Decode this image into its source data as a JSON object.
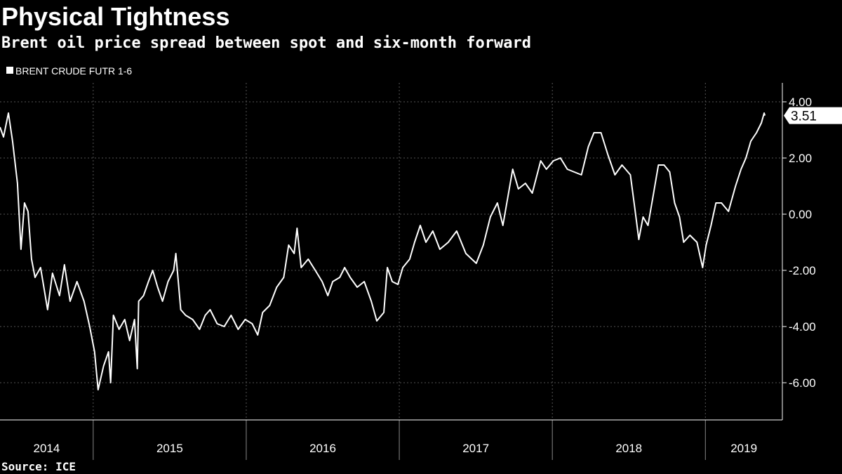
{
  "chart_data": {
    "type": "line",
    "title": "Physical Tightness",
    "subtitle": "Brent oil price spread between spot and six-month forward",
    "source": "Source: ICE",
    "x": [
      2014.391,
      2014.414,
      2014.446,
      2014.473,
      2014.505,
      2014.528,
      2014.551,
      2014.574,
      2014.597,
      2014.62,
      2014.656,
      2014.702,
      2014.734,
      2014.78,
      2014.812,
      2014.849,
      2014.894,
      2014.94,
      2014.977,
      2015.009,
      2015.032,
      2015.068,
      2015.1,
      2015.114,
      2015.132,
      2015.169,
      2015.206,
      2015.238,
      2015.27,
      2015.288,
      2015.297,
      2015.329,
      2015.361,
      2015.389,
      2015.421,
      2015.453,
      2015.489,
      2015.526,
      2015.54,
      2015.572,
      2015.604,
      2015.65,
      2015.695,
      2015.732,
      2015.764,
      2015.81,
      2015.856,
      2015.901,
      2015.947,
      2015.993,
      2016.039,
      2016.075,
      2016.107,
      2016.153,
      2016.199,
      2016.245,
      2016.277,
      2016.313,
      2016.332,
      2016.359,
      2016.405,
      2016.451,
      2016.496,
      2016.533,
      2016.565,
      2016.611,
      2016.643,
      2016.679,
      2016.725,
      2016.771,
      2016.817,
      2016.853,
      2016.899,
      2016.922,
      2016.954,
      2016.991,
      2017.023,
      2017.068,
      2017.1,
      2017.137,
      2017.174,
      2017.219,
      2017.265,
      2017.32,
      2017.375,
      2017.435,
      2017.503,
      2017.549,
      2017.595,
      2017.641,
      2017.677,
      2017.709,
      2017.741,
      2017.778,
      2017.824,
      2017.869,
      2017.924,
      2017.961,
      2018.007,
      2018.053,
      2018.098,
      2018.144,
      2018.19,
      2018.235,
      2018.272,
      2018.318,
      2018.364,
      2018.409,
      2018.455,
      2018.51,
      2018.538,
      2018.565,
      2018.593,
      2018.625,
      2018.657,
      2018.693,
      2018.73,
      2018.767,
      2018.799,
      2018.831,
      2018.858,
      2018.899,
      2018.945,
      2018.982,
      2019.005,
      2019.037,
      2019.069,
      2019.105,
      2019.151,
      2019.197,
      2019.233,
      2019.265,
      2019.297,
      2019.334,
      2019.366,
      2019.384,
      2019.389
    ],
    "series": [
      {
        "name": "BRENT CRUDE FUTR 1-6",
        "color": "#ffffff",
        "values": [
          3.1,
          2.75,
          3.6,
          2.6,
          1.1,
          -1.25,
          0.4,
          0.1,
          -1.6,
          -2.25,
          -1.9,
          -3.4,
          -2.1,
          -2.9,
          -1.8,
          -3.1,
          -2.4,
          -3.1,
          -4.0,
          -4.9,
          -6.25,
          -5.4,
          -4.9,
          -6.0,
          -3.6,
          -4.1,
          -3.75,
          -4.5,
          -3.75,
          -5.5,
          -3.1,
          -2.9,
          -2.4,
          -2.0,
          -2.6,
          -3.1,
          -2.4,
          -2.0,
          -1.4,
          -3.4,
          -3.6,
          -3.75,
          -4.1,
          -3.6,
          -3.4,
          -3.9,
          -4.0,
          -3.6,
          -4.1,
          -3.75,
          -3.9,
          -4.3,
          -3.5,
          -3.25,
          -2.6,
          -2.25,
          -1.1,
          -1.4,
          -0.5,
          -1.9,
          -1.6,
          -2.0,
          -2.4,
          -2.9,
          -2.4,
          -2.25,
          -1.9,
          -2.25,
          -2.6,
          -2.4,
          -3.1,
          -3.8,
          -3.5,
          -1.9,
          -2.4,
          -2.5,
          -1.9,
          -1.6,
          -1.0,
          -0.4,
          -1.0,
          -0.6,
          -1.25,
          -1.0,
          -0.6,
          -1.4,
          -1.75,
          -1.1,
          -0.1,
          0.4,
          -0.4,
          0.6,
          1.6,
          0.9,
          1.1,
          0.75,
          1.9,
          1.6,
          1.9,
          2.0,
          1.6,
          1.5,
          1.4,
          2.4,
          2.9,
          2.9,
          2.1,
          1.4,
          1.75,
          1.4,
          0.25,
          -0.9,
          -0.1,
          -0.4,
          0.6,
          1.75,
          1.75,
          1.5,
          0.4,
          -0.1,
          -1.0,
          -0.75,
          -1.0,
          -1.9,
          -1.1,
          -0.4,
          0.4,
          0.4,
          0.1,
          1.0,
          1.6,
          2.0,
          2.6,
          2.9,
          3.25,
          3.6,
          3.51
        ]
      }
    ],
    "xlim": [
      2014.391,
      2019.503
    ],
    "xticks": [
      2014,
      2015,
      2016,
      2017,
      2018,
      2019
    ],
    "ylim": [
      -7.325,
      4.675
    ],
    "yticks": [
      {
        "value": 4,
        "label": "4.00"
      },
      {
        "value": 2,
        "label": "2.00"
      },
      {
        "value": 0,
        "label": "0.00"
      },
      {
        "value": -2,
        "label": "-2.00"
      },
      {
        "value": -4,
        "label": "-4.00"
      },
      {
        "value": -6,
        "label": "-6.00"
      }
    ],
    "grid": true
  }
}
